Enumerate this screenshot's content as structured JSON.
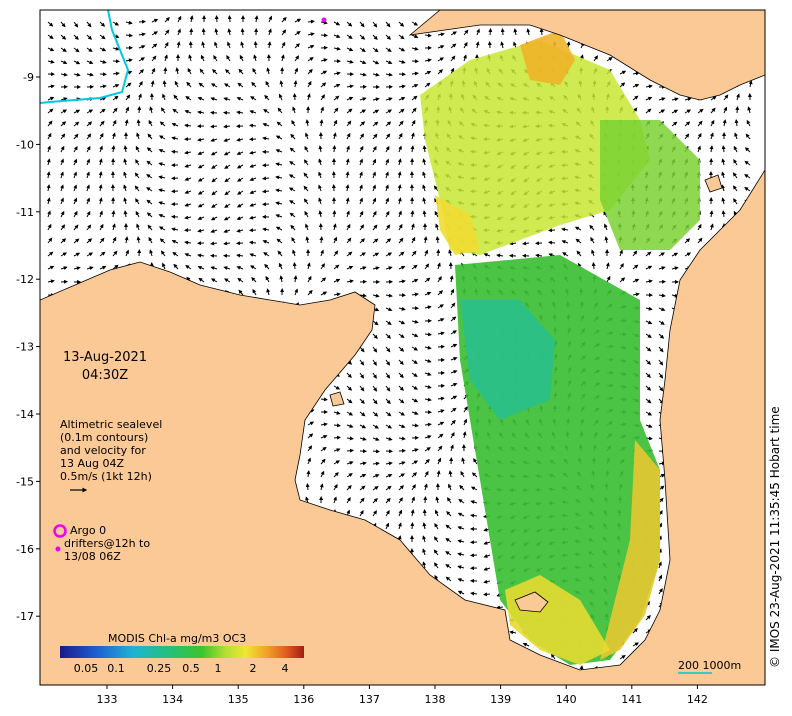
{
  "date": {
    "day": "13-Aug-2021",
    "time": "04:30Z"
  },
  "velocity_legend": {
    "lines": [
      "Altimetric sealevel",
      "(0.1m contours)",
      "and velocity for",
      "13 Aug 04Z",
      "0.5m/s (1kt 12h)"
    ]
  },
  "argo": {
    "title": "Argo 0",
    "line2": "drifters@12h to",
    "line3": "13/08 06Z"
  },
  "colorbar": {
    "title": "MODIS Chl-a mg/m3 OC3",
    "ticks": [
      "0.05",
      "0.1",
      "0.25",
      "0.5",
      "1",
      "2",
      "4"
    ]
  },
  "axes": {
    "lon_ticks": [
      "133",
      "134",
      "135",
      "136",
      "137",
      "138",
      "139",
      "140",
      "141",
      "142"
    ],
    "lat_ticks": [
      "-9",
      "-10",
      "-11",
      "-12",
      "-13",
      "-14",
      "-15",
      "-16",
      "-17"
    ]
  },
  "scale_bar": {
    "label": "200  1000m"
  },
  "credit": "© IMOS 23-Aug-2021 11:35:45 Hobart time",
  "colors": {
    "land": "#fbc996",
    "sea": "#ffffff",
    "argo": "#ee00ee",
    "contour": "#00c8e6",
    "scale": "#00c8c8"
  }
}
